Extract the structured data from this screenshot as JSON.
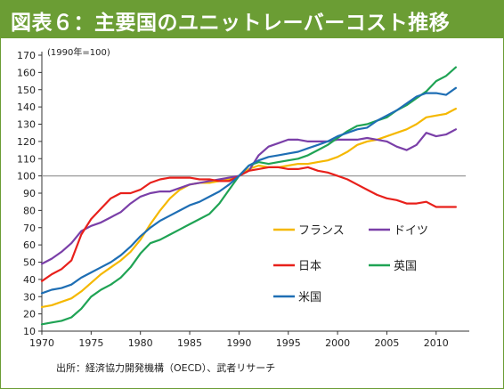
{
  "title": "図表６：主要国のユニットレーバーコスト推移",
  "source": "出所：経済協力開発機構（OECD）、武者リサーチ",
  "chart_data": {
    "type": "line",
    "unit_label": "(1990年=100)",
    "ylim": [
      10,
      170
    ],
    "yticks": [
      10,
      20,
      30,
      40,
      50,
      60,
      70,
      80,
      90,
      100,
      110,
      120,
      130,
      140,
      150,
      160,
      170
    ],
    "xlim": [
      1970,
      2013
    ],
    "xticks": [
      1970,
      1975,
      1980,
      1985,
      1990,
      1995,
      2000,
      2005,
      2010
    ],
    "reference_line": 100,
    "grid": false,
    "x": [
      1970,
      1971,
      1972,
      1973,
      1974,
      1975,
      1976,
      1977,
      1978,
      1979,
      1980,
      1981,
      1982,
      1983,
      1984,
      1985,
      1986,
      1987,
      1988,
      1989,
      1990,
      1991,
      1992,
      1993,
      1994,
      1995,
      1996,
      1997,
      1998,
      1999,
      2000,
      2001,
      2002,
      2003,
      2004,
      2005,
      2006,
      2007,
      2008,
      2009,
      2010,
      2011,
      2012
    ],
    "series": [
      {
        "name": "フランス",
        "color": "#f5b800",
        "values": [
          24,
          25,
          27,
          29,
          33,
          38,
          43,
          47,
          51,
          56,
          63,
          72,
          80,
          87,
          92,
          95,
          96,
          96,
          97,
          98,
          100,
          104,
          106,
          105,
          105,
          106,
          107,
          107,
          108,
          109,
          111,
          114,
          118,
          120,
          121,
          123,
          125,
          127,
          130,
          134,
          135,
          136,
          139
        ]
      },
      {
        "name": "ドイツ",
        "color": "#7a3fa8",
        "values": [
          49,
          52,
          56,
          61,
          68,
          71,
          73,
          76,
          79,
          84,
          88,
          90,
          91,
          91,
          93,
          95,
          96,
          97,
          98,
          99,
          100,
          103,
          112,
          117,
          119,
          121,
          121,
          120,
          120,
          120,
          121,
          121,
          121,
          122,
          121,
          120,
          117,
          115,
          118,
          125,
          123,
          124,
          127
        ]
      },
      {
        "name": "日本",
        "color": "#e8201b",
        "values": [
          39,
          43,
          46,
          51,
          66,
          75,
          81,
          87,
          90,
          90,
          92,
          96,
          98,
          99,
          99,
          99,
          98,
          98,
          97,
          97,
          100,
          103,
          104,
          105,
          105,
          104,
          104,
          105,
          103,
          102,
          100,
          98,
          95,
          92,
          89,
          87,
          86,
          84,
          84,
          85,
          82,
          82,
          82
        ]
      },
      {
        "name": "英国",
        "color": "#1fa354",
        "values": [
          14,
          15,
          16,
          18,
          23,
          30,
          34,
          37,
          41,
          47,
          55,
          61,
          63,
          66,
          69,
          72,
          75,
          78,
          84,
          92,
          100,
          106,
          108,
          107,
          108,
          109,
          110,
          112,
          115,
          118,
          122,
          126,
          129,
          130,
          132,
          134,
          138,
          141,
          145,
          149,
          155,
          158,
          163
        ]
      },
      {
        "name": "米国",
        "color": "#1e6eb4",
        "values": [
          32,
          34,
          35,
          37,
          41,
          44,
          47,
          50,
          54,
          59,
          65,
          70,
          74,
          77,
          80,
          83,
          85,
          88,
          91,
          95,
          100,
          106,
          109,
          111,
          112,
          113,
          114,
          116,
          118,
          120,
          123,
          125,
          127,
          128,
          132,
          135,
          138,
          142,
          146,
          148,
          148,
          147,
          151
        ]
      }
    ]
  }
}
